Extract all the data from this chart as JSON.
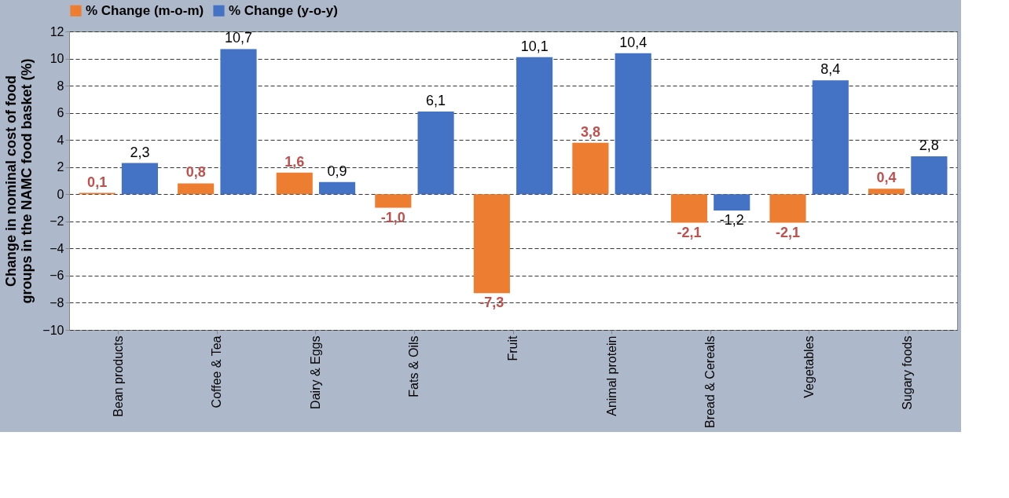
{
  "chart_data": {
    "type": "bar",
    "ylabel": "Change in nominal cost of food groups in the NAMC food basket (%)",
    "categories": [
      "Bean products",
      "Coffee & Tea",
      "Dairy & Eggs",
      "Fats & Oils",
      "Fruit",
      "Animal protein",
      "Bread & Cereals",
      "Vegetables",
      "Sugary foods"
    ],
    "series": [
      {
        "name": "% Change (m-o-m)",
        "color": "#ed7d31",
        "values": [
          0.1,
          0.8,
          1.6,
          -1.0,
          -7.3,
          3.8,
          -2.1,
          -2.1,
          0.4
        ],
        "value_labels": [
          "0,1",
          "0,8",
          "1,6",
          "-1,0",
          "-7,3",
          "3,8",
          "-2,1",
          "-2,1",
          "0,4"
        ]
      },
      {
        "name": "% Change (y-o-y)",
        "color": "#4472c4",
        "values": [
          2.3,
          10.7,
          0.9,
          6.1,
          10.1,
          10.4,
          -1.2,
          8.4,
          2.8
        ],
        "value_labels": [
          "2,3",
          "10,7",
          "0,9",
          "6,1",
          "10,1",
          "10,4",
          "-1,2",
          "8,4",
          "2,8"
        ]
      }
    ],
    "ylim": [
      -10,
      12
    ],
    "yticks": [
      -10,
      -8,
      -6,
      -4,
      -2,
      0,
      2,
      4,
      6,
      8,
      10,
      12
    ],
    "grid": "y",
    "legend": "top"
  }
}
